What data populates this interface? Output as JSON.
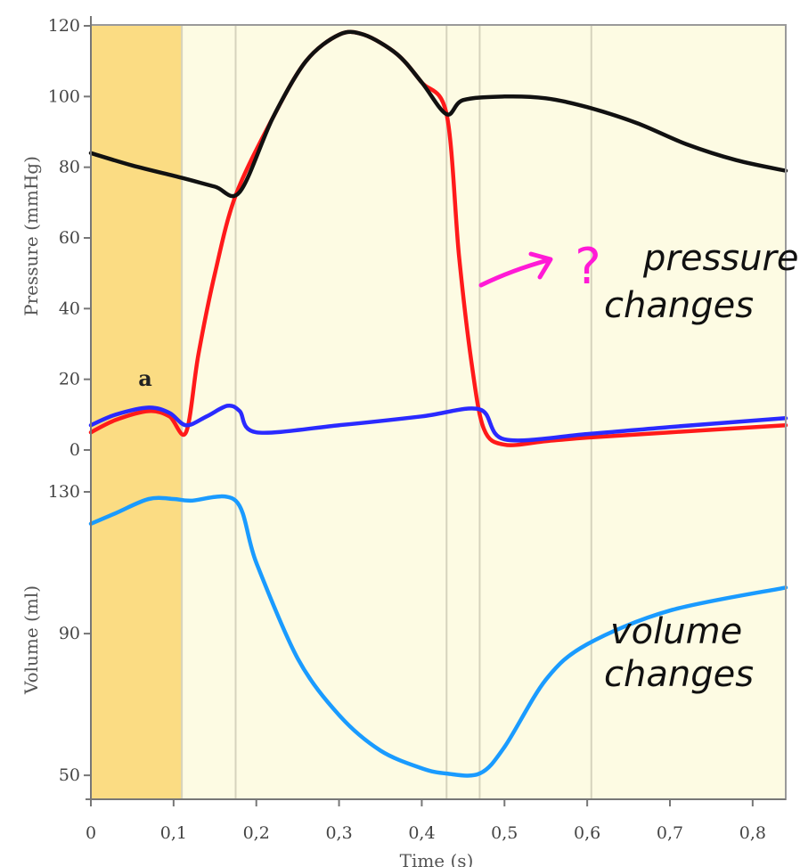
{
  "chart_data": {
    "type": "line",
    "xlabel": "Time (s)",
    "x_ticks": [
      "0",
      "0,1",
      "0,2",
      "0,3",
      "0,4",
      "0,5",
      "0,6",
      "0,7",
      "0,8"
    ],
    "x_tick_values": [
      0,
      0.1,
      0.2,
      0.3,
      0.4,
      0.5,
      0.6,
      0.7,
      0.8
    ],
    "xlim": [
      0,
      0.84
    ],
    "phase_dividers": [
      0.11,
      0.175,
      0.43,
      0.47,
      0.605
    ],
    "shaded_region": [
      0,
      0.11
    ],
    "colors": {
      "shade": "#fbdc83",
      "background": "#fdfbe3",
      "aortic": "#111111",
      "ventricular": "#ff1a1a",
      "atrial": "#2a2aff",
      "volume": "#1a9bff",
      "annotation": "#ff1ad6"
    },
    "pressure_panel": {
      "ylabel": "Pressure (mmHg)",
      "ylim": [
        0,
        120
      ],
      "y_ticks": [
        "0",
        "20",
        "40",
        "60",
        "80",
        "100",
        "120"
      ],
      "y_tick_values": [
        0,
        20,
        40,
        60,
        80,
        100,
        120
      ],
      "series": [
        {
          "name": "aortic-pressure",
          "x": [
            0,
            0.05,
            0.11,
            0.15,
            0.18,
            0.22,
            0.26,
            0.3,
            0.33,
            0.37,
            0.4,
            0.43,
            0.45,
            0.5,
            0.55,
            0.6,
            0.66,
            0.72,
            0.78,
            0.84
          ],
          "y": [
            84,
            80.5,
            77,
            74.5,
            73,
            94,
            110,
            117.5,
            117.5,
            112,
            104,
            95,
            99,
            100,
            99.5,
            97,
            92.5,
            86.5,
            82,
            79
          ]
        },
        {
          "name": "ventricular-pressure",
          "x": [
            0,
            0.03,
            0.07,
            0.095,
            0.115,
            0.13,
            0.15,
            0.175,
            0.22,
            0.26,
            0.3,
            0.33,
            0.37,
            0.4,
            0.43,
            0.445,
            0.46,
            0.475,
            0.5,
            0.55,
            0.6,
            0.7,
            0.84
          ],
          "y": [
            5,
            8.5,
            11,
            9.5,
            5,
            27,
            50,
            72,
            94,
            110,
            117.5,
            117.5,
            112,
            104,
            95,
            55,
            25,
            6,
            1.5,
            2.5,
            3.5,
            5,
            7
          ]
        },
        {
          "name": "atrial-pressure",
          "x": [
            0,
            0.03,
            0.07,
            0.095,
            0.115,
            0.14,
            0.165,
            0.18,
            0.2,
            0.3,
            0.4,
            0.47,
            0.5,
            0.6,
            0.7,
            0.84
          ],
          "y": [
            7,
            10,
            12,
            10.5,
            7,
            9.5,
            12.5,
            11,
            5,
            7,
            9.5,
            11.5,
            3,
            4.5,
            6.5,
            9
          ]
        }
      ],
      "annotations": {
        "a_wave_label": "a",
        "question_mark": "?",
        "pressure_text_1": "pressure",
        "pressure_text_2": "changes"
      }
    },
    "volume_panel": {
      "ylabel": "Volume (ml)",
      "ylim": [
        45,
        130
      ],
      "y_ticks": [
        "50",
        "90",
        "130"
      ],
      "y_tick_values": [
        50,
        90,
        130
      ],
      "series": [
        {
          "name": "ventricular-volume",
          "x": [
            0,
            0.03,
            0.07,
            0.1,
            0.12,
            0.175,
            0.2,
            0.25,
            0.3,
            0.35,
            0.4,
            0.43,
            0.47,
            0.5,
            0.55,
            0.6,
            0.7,
            0.84
          ],
          "y": [
            121,
            124,
            128,
            128,
            127.5,
            127.5,
            110,
            83,
            67,
            57,
            52,
            50.5,
            50.5,
            58,
            77,
            87,
            96.5,
            103
          ]
        }
      ],
      "annotations": {
        "volume_text_1": "volume",
        "volume_text_2": "changes"
      }
    }
  }
}
